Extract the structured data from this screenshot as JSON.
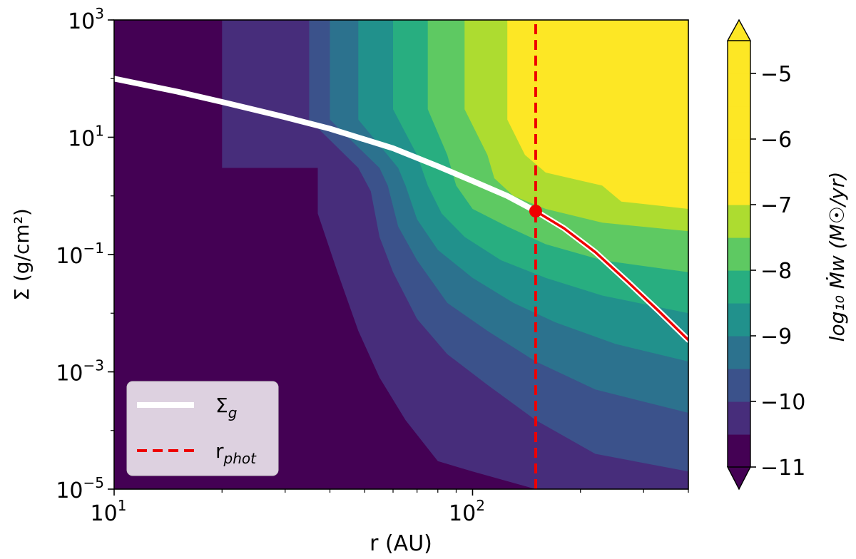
{
  "chart_data": {
    "type": "heatmap",
    "title": "",
    "xlabel": "r (AU)",
    "ylabel": "Σ (g/cm²)",
    "xscale": "log",
    "yscale": "log",
    "xlim": [
      10,
      400
    ],
    "ylim": [
      1e-05,
      1000
    ],
    "x_ticks": [
      {
        "value": 10,
        "base": "10",
        "exp": "1"
      },
      {
        "value": 100,
        "base": "10",
        "exp": "2"
      }
    ],
    "y_ticks": [
      {
        "value": 1000,
        "base": "10",
        "exp": "3"
      },
      {
        "value": 10,
        "base": "10",
        "exp": "1"
      },
      {
        "value": 0.1,
        "base": "10",
        "exp": "−1"
      },
      {
        "value": 0.001,
        "base": "10",
        "exp": "−3"
      },
      {
        "value": 1e-05,
        "base": "10",
        "exp": "−5"
      }
    ],
    "colorbar": {
      "label": "log₁₀ Ṁw (M☉/yr)",
      "range": [
        -11,
        -4.5
      ],
      "levels": [
        -11,
        -10.5,
        -10,
        -9.5,
        -9,
        -8.5,
        -8,
        -7.5,
        -7,
        -6.5,
        -6,
        -5.5,
        -5,
        -4.5
      ],
      "colors": [
        "#440154",
        "#472d7b",
        "#3b528b",
        "#2c728e",
        "#21918c",
        "#28ae80",
        "#5ec962",
        "#addc30",
        "#fde725",
        "#fde725",
        "#fde725",
        "#fde725",
        "#fde725"
      ],
      "tick_labels": [
        "−11",
        "−10",
        "−9",
        "−8",
        "−7",
        "−6",
        "−5"
      ],
      "tick_values": [
        -11,
        -10,
        -9,
        -8,
        -7,
        -6,
        -5
      ],
      "extend": "both",
      "under_color": "#440154",
      "over_color": "#fde725"
    },
    "contour_boundaries": [
      {
        "level": -10.5,
        "points": [
          [
            20,
            1000
          ],
          [
            20,
            3
          ],
          [
            37,
            3
          ],
          [
            37,
            0.5
          ],
          [
            42,
            0.05
          ],
          [
            48,
            0.005
          ],
          [
            55,
            0.0008
          ],
          [
            65,
            0.00015
          ],
          [
            80,
            3e-05
          ],
          [
            100,
            2e-05
          ],
          [
            150,
            1e-05
          ]
        ]
      },
      {
        "level": -10,
        "points": [
          [
            35,
            1000
          ],
          [
            35,
            20
          ],
          [
            48,
            3
          ],
          [
            52,
            1.2
          ],
          [
            55,
            0.2
          ],
          [
            60,
            0.05
          ],
          [
            70,
            0.008
          ],
          [
            85,
            0.002
          ],
          [
            110,
            0.0006
          ],
          [
            150,
            0.00015
          ],
          [
            220,
            4e-05
          ],
          [
            400,
            2e-05
          ]
        ]
      },
      {
        "level": -9.5,
        "points": [
          [
            40,
            1000
          ],
          [
            40,
            20
          ],
          [
            55,
            3
          ],
          [
            58,
            1.5
          ],
          [
            62,
            0.3
          ],
          [
            70,
            0.08
          ],
          [
            85,
            0.015
          ],
          [
            110,
            0.005
          ],
          [
            150,
            0.0015
          ],
          [
            220,
            0.0005
          ],
          [
            400,
            0.0002
          ]
        ]
      },
      {
        "level": -9,
        "points": [
          [
            48,
            1000
          ],
          [
            48,
            20
          ],
          [
            62,
            3
          ],
          [
            65,
            1.5
          ],
          [
            70,
            0.4
          ],
          [
            80,
            0.12
          ],
          [
            100,
            0.04
          ],
          [
            130,
            0.015
          ],
          [
            170,
            0.007
          ],
          [
            250,
            0.003
          ],
          [
            400,
            0.0015
          ]
        ]
      },
      {
        "level": -8.5,
        "points": [
          [
            60,
            1000
          ],
          [
            60,
            30
          ],
          [
            70,
            5
          ],
          [
            75,
            1.5
          ],
          [
            82,
            0.5
          ],
          [
            95,
            0.2
          ],
          [
            120,
            0.08
          ],
          [
            160,
            0.04
          ],
          [
            230,
            0.02
          ],
          [
            400,
            0.01
          ]
        ]
      },
      {
        "level": -8,
        "points": [
          [
            75,
            1000
          ],
          [
            75,
            30
          ],
          [
            85,
            5
          ],
          [
            90,
            1.5
          ],
          [
            100,
            0.6
          ],
          [
            125,
            0.3
          ],
          [
            160,
            0.15
          ],
          [
            230,
            0.08
          ],
          [
            400,
            0.05
          ]
        ]
      },
      {
        "level": -7.5,
        "points": [
          [
            95,
            1000
          ],
          [
            95,
            30
          ],
          [
            110,
            5
          ],
          [
            115,
            2
          ],
          [
            130,
            1
          ],
          [
            160,
            0.6
          ],
          [
            230,
            0.35
          ],
          [
            400,
            0.25
          ]
        ]
      },
      {
        "level": -7,
        "points": [
          [
            125,
            1000
          ],
          [
            125,
            20
          ],
          [
            140,
            5
          ],
          [
            160,
            2.5
          ],
          [
            230,
            1.5
          ],
          [
            400,
            1.2
          ]
        ]
      },
      {
        "level": -6.5,
        "points": [
          [
            155,
            1000
          ],
          [
            155,
            10
          ],
          [
            190,
            3
          ],
          [
            230,
            1.5
          ],
          [
            260,
            0.8
          ],
          [
            400,
            0.6
          ]
        ]
      },
      {
        "level": -5,
        "points": [
          [
            240,
            1000
          ],
          [
            240,
            3
          ],
          [
            270,
            1
          ],
          [
            400,
            1
          ]
        ]
      }
    ],
    "series": [
      {
        "name": "Σg",
        "style": "solid",
        "color": "#ffffff",
        "x": [
          10,
          15,
          20,
          30,
          40,
          60,
          80,
          100,
          125,
          150,
          180,
          220,
          270,
          330,
          400
        ],
        "y": [
          100,
          60,
          40,
          22,
          14,
          6.5,
          3.2,
          1.8,
          1.0,
          0.55,
          0.28,
          0.11,
          0.035,
          0.011,
          0.0035
        ]
      },
      {
        "name": "rphot",
        "style": "dashed",
        "color": "#ee0000",
        "x": [
          150,
          150
        ],
        "y": [
          1e-05,
          1000
        ]
      },
      {
        "name": "",
        "style": "solid",
        "color": "#ee0000",
        "x": [
          150,
          180,
          220,
          270,
          330,
          400
        ],
        "y": [
          0.55,
          0.28,
          0.11,
          0.035,
          0.011,
          0.0035
        ]
      }
    ],
    "marker": {
      "x": 150,
      "y": 0.55,
      "color": "#ee0000"
    },
    "legend": {
      "placement": "lower-left",
      "entries": [
        {
          "label_base": "Σ",
          "label_sub": "g",
          "style": "solid",
          "color": "#ffffff"
        },
        {
          "label_base": "r",
          "label_sub": "phot",
          "style": "dashed",
          "color": "#ee0000"
        }
      ]
    },
    "grid": false
  }
}
